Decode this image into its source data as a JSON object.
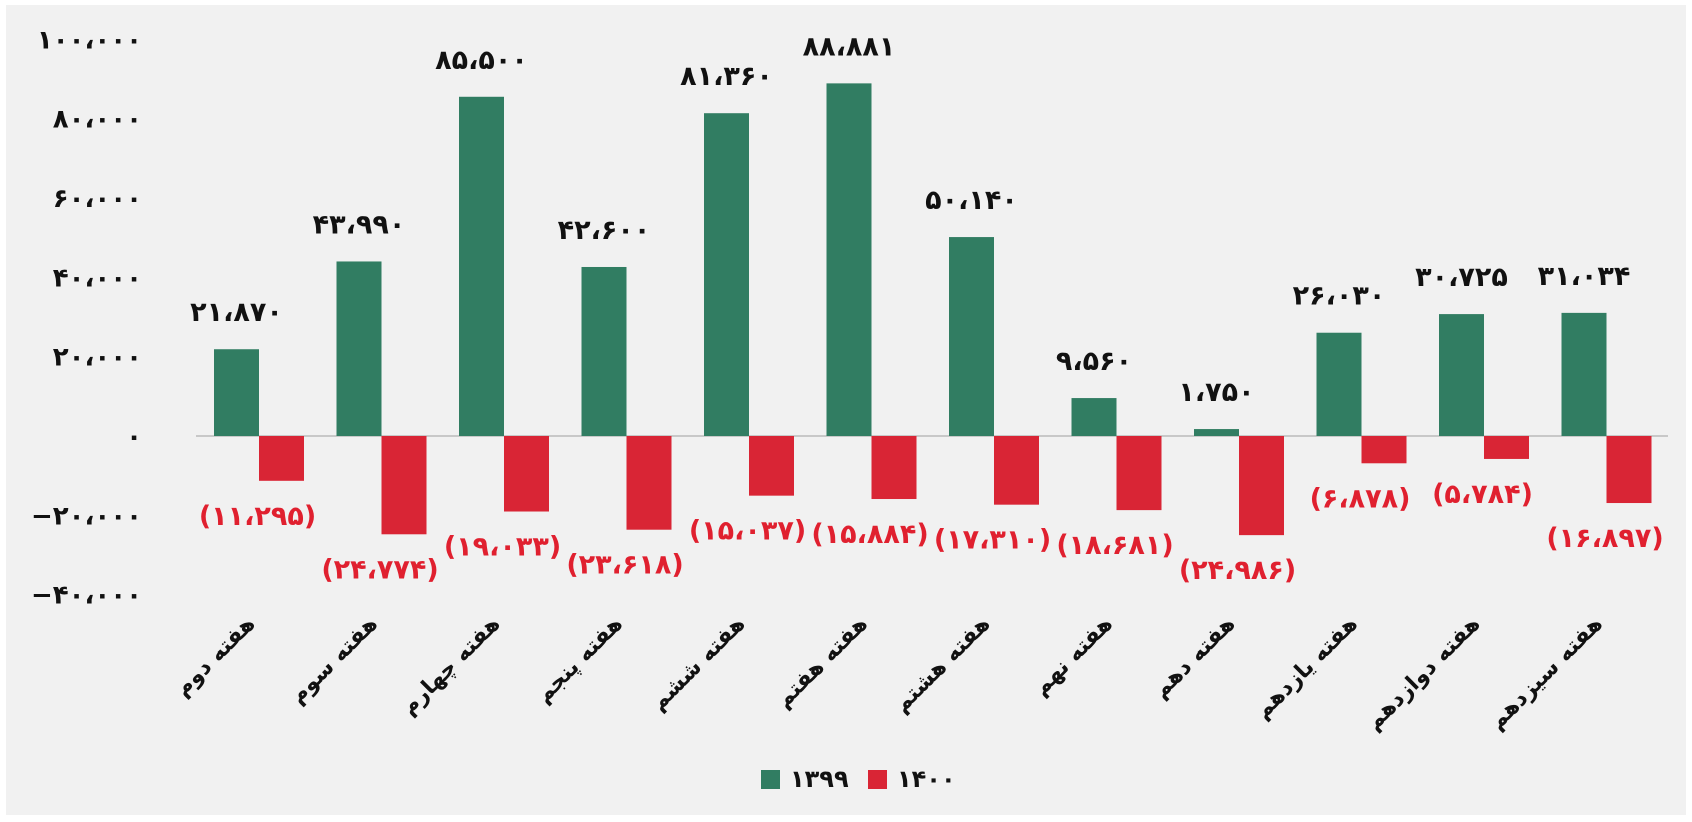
{
  "chart_data": {
    "type": "bar",
    "title": "",
    "xlabel": "",
    "ylabel": "",
    "ylim": [
      -40000,
      100000
    ],
    "yticks": [
      -40000,
      -20000,
      0,
      20000,
      40000,
      60000,
      80000,
      100000
    ],
    "ytick_labels": [
      "−۴۰،۰۰۰",
      "−۲۰،۰۰۰",
      "۰",
      "۲۰،۰۰۰",
      "۴۰،۰۰۰",
      "۶۰،۰۰۰",
      "۸۰،۰۰۰",
      "۱۰۰،۰۰۰"
    ],
    "grid": false,
    "legend_position": "bottom",
    "categories": [
      "هفته دوم",
      "هفته سوم",
      "هفته چهارم",
      "هفته پنجم",
      "هفته ششم",
      "هفته هفتم",
      "هفته هشتم",
      "هفته نهم",
      "هفته دهم",
      "هفته یازدهم",
      "هفته دوازدهم",
      "هفته سیزدهم"
    ],
    "series": [
      {
        "name": "۱۳۹۹",
        "color": "#317d62",
        "values": [
          21870,
          43990,
          85500,
          42600,
          81360,
          88881,
          50140,
          9560,
          1750,
          26030,
          30725,
          31034
        ],
        "labels": [
          "۲۱،۸۷۰",
          "۴۳،۹۹۰",
          "۸۵،۵۰۰",
          "۴۲،۶۰۰",
          "۸۱،۳۶۰",
          "۸۸،۸۸۱",
          "۵۰،۱۴۰",
          "۹،۵۶۰",
          "۱،۷۵۰",
          "۲۶،۰۳۰",
          "۳۰،۷۲۵",
          "۳۱،۰۳۴"
        ]
      },
      {
        "name": "۱۴۰۰",
        "color": "#d92535",
        "values": [
          -11295,
          -24774,
          -19033,
          -23618,
          -15037,
          -15884,
          -17310,
          -18681,
          -24986,
          -6878,
          -5784,
          -16897
        ],
        "labels": [
          "(۱۱،۲۹۵)",
          "(۲۴،۷۷۴)",
          "(۱۹،۰۳۳)",
          "(۲۳،۶۱۸)",
          "(۱۵،۰۳۷)",
          "(۱۵،۸۸۴)",
          "(۱۷،۳۱۰)",
          "(۱۸،۶۸۱)",
          "(۲۴،۹۸۶)",
          "(۶،۸۷۸)",
          "(۵،۷۸۴)",
          "(۱۶،۸۹۷)"
        ]
      }
    ]
  },
  "style": {
    "background": "#f1f1f1",
    "axis_color": "#c8c8c8",
    "text_color": "#111111",
    "negative_label_color": "#e0202f"
  }
}
